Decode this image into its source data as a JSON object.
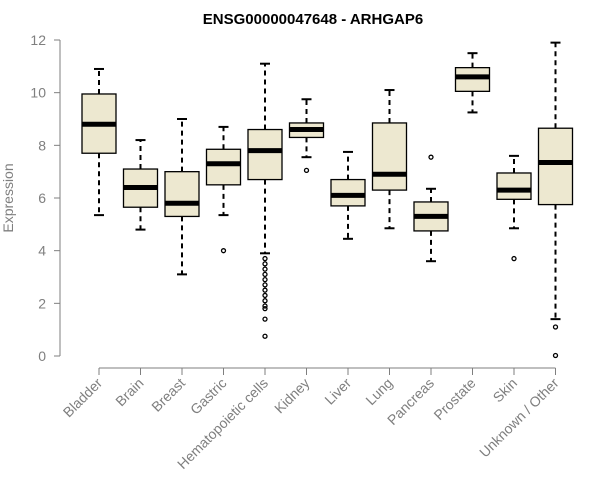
{
  "chart_data": {
    "type": "boxplot",
    "title": "ENSG00000047648 - ARHGAP6",
    "xlabel": "",
    "ylabel": "Expression",
    "ylim": [
      0,
      12
    ],
    "yticks": [
      0,
      2,
      4,
      6,
      8,
      10,
      12
    ],
    "grid": false,
    "box_color": "#ede8d0",
    "line_color": "#000000",
    "axis_color": "#7f7f7f",
    "categories": [
      "Bladder",
      "Brain",
      "Breast",
      "Gastric",
      "Hematopoietic cells",
      "Kidney",
      "Liver",
      "Lung",
      "Pancreas",
      "Prostate",
      "Skin",
      "Unknown / Other"
    ],
    "boxes": [
      {
        "whisker_low": 5.35,
        "q1": 7.7,
        "median": 8.8,
        "q3": 9.95,
        "whisker_high": 10.9,
        "outliers": []
      },
      {
        "whisker_low": 4.8,
        "q1": 5.65,
        "median": 6.4,
        "q3": 7.1,
        "whisker_high": 8.2,
        "outliers": []
      },
      {
        "whisker_low": 3.1,
        "q1": 5.3,
        "median": 5.8,
        "q3": 7.0,
        "whisker_high": 9.0,
        "outliers": []
      },
      {
        "whisker_low": 5.35,
        "q1": 6.5,
        "median": 7.3,
        "q3": 7.85,
        "whisker_high": 8.7,
        "outliers": [
          4.0
        ]
      },
      {
        "whisker_low": 3.9,
        "q1": 6.7,
        "median": 7.8,
        "q3": 8.6,
        "whisker_high": 11.1,
        "outliers": [
          3.7,
          3.5,
          3.3,
          3.1,
          2.9,
          2.7,
          2.5,
          2.3,
          2.1,
          1.9,
          1.8,
          1.4,
          0.75
        ]
      },
      {
        "whisker_low": 7.55,
        "q1": 8.3,
        "median": 8.6,
        "q3": 8.85,
        "whisker_high": 9.75,
        "outliers": [
          7.05
        ]
      },
      {
        "whisker_low": 4.45,
        "q1": 5.7,
        "median": 6.1,
        "q3": 6.7,
        "whisker_high": 7.75,
        "outliers": []
      },
      {
        "whisker_low": 4.85,
        "q1": 6.3,
        "median": 6.9,
        "q3": 8.85,
        "whisker_high": 10.1,
        "outliers": []
      },
      {
        "whisker_low": 3.6,
        "q1": 4.75,
        "median": 5.3,
        "q3": 5.85,
        "whisker_high": 6.35,
        "outliers": [
          7.55
        ]
      },
      {
        "whisker_low": 9.25,
        "q1": 10.05,
        "median": 10.6,
        "q3": 10.95,
        "whisker_high": 11.5,
        "outliers": []
      },
      {
        "whisker_low": 4.85,
        "q1": 5.95,
        "median": 6.3,
        "q3": 6.95,
        "whisker_high": 7.6,
        "outliers": [
          3.7
        ]
      },
      {
        "whisker_low": 1.4,
        "q1": 5.75,
        "median": 7.35,
        "q3": 8.65,
        "whisker_high": 11.9,
        "outliers": [
          1.1,
          0.02
        ]
      }
    ]
  }
}
